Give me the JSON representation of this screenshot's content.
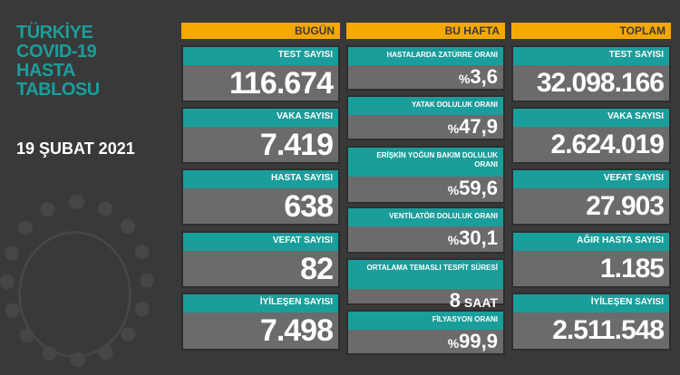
{
  "title": [
    "TÜRKİYE",
    "COVID-19",
    "HASTA",
    "TABLOSU"
  ],
  "date": "19 ŞUBAT 2021",
  "columns": {
    "today": {
      "header": "BUGÜN",
      "items": [
        {
          "label": "TEST SAYISI",
          "value": "116.674"
        },
        {
          "label": "VAKA SAYISI",
          "value": "7.419"
        },
        {
          "label": "HASTA SAYISI",
          "value": "638"
        },
        {
          "label": "VEFAT SAYISI",
          "value": "82"
        },
        {
          "label": "İYİLEŞEN SAYISI",
          "value": "7.498"
        }
      ]
    },
    "week": {
      "header": "BU HAFTA",
      "items": [
        {
          "label": "HASTALARDA ZATÜRRE ORANI",
          "prefix": "%",
          "value": "3,6"
        },
        {
          "label": "YATAK DOLULUK ORANI",
          "prefix": "%",
          "value": "47,9"
        },
        {
          "label": "ERİŞKİN YOĞUN BAKIM DOLULUK ORANI",
          "prefix": "%",
          "value": "59,6"
        },
        {
          "label": "VENTİLATÖR DOLULUK ORANI",
          "prefix": "%",
          "value": "30,1"
        },
        {
          "label": "ORTALAMA TEMASLI TESPİT SÜRESİ",
          "value": "8",
          "suffix": " SAAT"
        },
        {
          "label": "FİLYASYON ORANI",
          "prefix": "%",
          "value": "99,9"
        }
      ]
    },
    "total": {
      "header": "TOPLAM",
      "items": [
        {
          "label": "TEST SAYISI",
          "value": "32.098.166"
        },
        {
          "label": "VAKA SAYISI",
          "value": "2.624.019"
        },
        {
          "label": "VEFAT SAYISI",
          "value": "27.903"
        },
        {
          "label": "AĞIR HASTA SAYISI",
          "value": "1.185"
        },
        {
          "label": "İYİLEŞEN SAYISI",
          "value": "2.511.548"
        }
      ]
    }
  },
  "colors": {
    "background": "#393939",
    "teal": "#1a9e9b",
    "header": "#f5a800",
    "card": "#6b6b6b"
  }
}
